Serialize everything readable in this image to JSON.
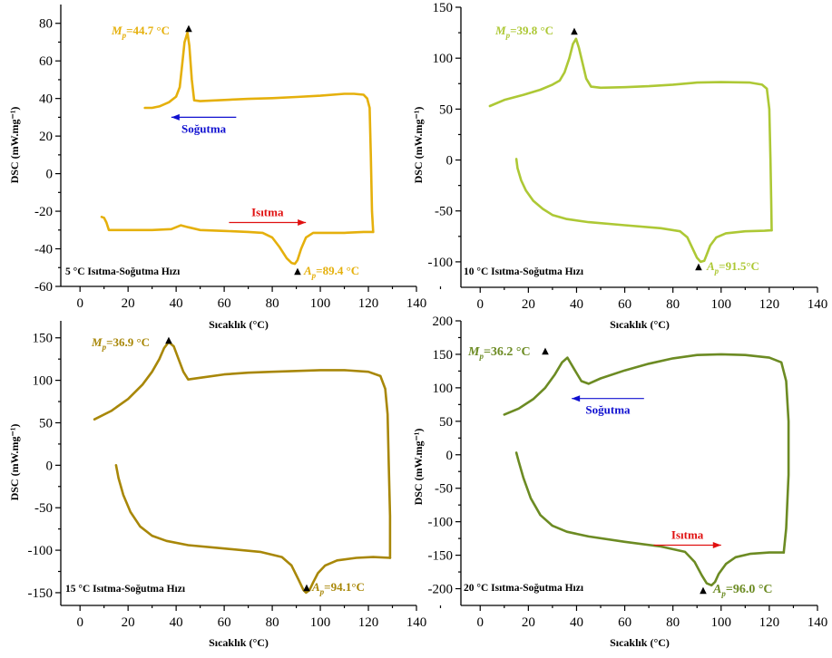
{
  "chart_data": [
    {
      "type": "line",
      "color": "#E5B00C",
      "xlabel": "Sıcaklık (°C)",
      "ylabel": "DSC (mW.mg⁻¹)",
      "xlim": [
        -8,
        140
      ],
      "ylim": [
        -60,
        90
      ],
      "xticks": [
        0,
        20,
        40,
        60,
        80,
        100,
        120,
        140
      ],
      "yticks": [
        -60,
        -40,
        -20,
        0,
        20,
        40,
        60,
        80
      ],
      "panel_label": "5 °C Isıtma-Soğutma Hızı",
      "peaks": {
        "mp": {
          "label": "M",
          "subscript": "p",
          "value": "=44.7 °C",
          "x": 44.7,
          "y": 77
        },
        "ap": {
          "label": "A",
          "subscript": "p",
          "value": "=89.4 °C",
          "x": 89.4,
          "y": -48
        }
      },
      "arrows": [
        {
          "label": "Soğutma",
          "direction": "left",
          "color": "#1010D0",
          "x_from": 65,
          "x_to": 38,
          "y": 30
        },
        {
          "label": "Isıtma",
          "direction": "right",
          "color": "#E01010",
          "x_from": 62,
          "x_to": 94,
          "y": -26
        }
      ],
      "series": [
        {
          "points": [
            [
              9,
              -23
            ],
            [
              10,
              -23.5
            ],
            [
              11,
              -26
            ],
            [
              12,
              -30
            ],
            [
              20,
              -30
            ],
            [
              30,
              -30
            ],
            [
              38,
              -29.5
            ],
            [
              42,
              -27.5
            ],
            [
              45,
              -28.5
            ],
            [
              50,
              -30
            ],
            [
              60,
              -30.5
            ],
            [
              70,
              -31
            ],
            [
              76,
              -31.5
            ],
            [
              80,
              -34
            ],
            [
              83,
              -39
            ],
            [
              86,
              -45
            ],
            [
              88,
              -47.5
            ],
            [
              89.4,
              -48
            ],
            [
              90.5,
              -46
            ],
            [
              92,
              -40
            ],
            [
              94,
              -34
            ],
            [
              97,
              -31.5
            ],
            [
              100,
              -31.5
            ],
            [
              110,
              -31.5
            ],
            [
              118,
              -31
            ],
            [
              122,
              -31
            ]
          ]
        },
        {
          "points": [
            [
              122,
              -31
            ],
            [
              121.5,
              -20
            ],
            [
              121,
              10
            ],
            [
              120.5,
              35
            ],
            [
              119.5,
              40
            ],
            [
              118,
              42
            ],
            [
              114,
              42.5
            ],
            [
              110,
              42.5
            ],
            [
              100,
              41.5
            ],
            [
              90,
              40.8
            ],
            [
              80,
              40.2
            ],
            [
              70,
              39.8
            ],
            [
              60,
              39.2
            ],
            [
              50,
              38.6
            ],
            [
              47.5,
              39
            ],
            [
              46.5,
              50
            ],
            [
              45.5,
              68
            ],
            [
              44.7,
              75
            ],
            [
              43.5,
              70
            ],
            [
              42.5,
              58
            ],
            [
              41.5,
              46
            ],
            [
              40,
              41
            ],
            [
              37,
              38
            ],
            [
              33,
              35.8
            ],
            [
              30,
              35
            ],
            [
              27,
              35
            ]
          ]
        }
      ]
    },
    {
      "type": "line",
      "color": "#ADC835",
      "xlabel": "Sıcaklık (°C)",
      "ylabel": "DSC (mW.mg⁻¹)",
      "xlim": [
        -8,
        140
      ],
      "ylim": [
        -125,
        150
      ],
      "xticks": [
        0,
        20,
        40,
        60,
        80,
        100,
        120,
        140
      ],
      "yticks": [
        -100,
        -50,
        0,
        50,
        100,
        150
      ],
      "panel_label": "10 °C Isıtma-Soğutma Hızı",
      "peaks": {
        "mp": {
          "label": "M",
          "subscript": "p",
          "value": "=39.8 °C",
          "x": 39.8,
          "y": 127
        },
        "ap": {
          "label": "A",
          "subscript": "p",
          "value": "=91.5°C",
          "x": 91.5,
          "y": -108
        }
      },
      "arrows": [],
      "series": [
        {
          "points": [
            [
              15,
              1
            ],
            [
              15.5,
              -8
            ],
            [
              17,
              -20
            ],
            [
              19,
              -30
            ],
            [
              22,
              -40
            ],
            [
              26,
              -48
            ],
            [
              30,
              -54
            ],
            [
              36,
              -58
            ],
            [
              45,
              -61
            ],
            [
              60,
              -64
            ],
            [
              75,
              -67
            ],
            [
              83,
              -70
            ],
            [
              86,
              -76
            ],
            [
              88,
              -86
            ],
            [
              90,
              -96
            ],
            [
              91.5,
              -100
            ],
            [
              93,
              -99
            ],
            [
              94,
              -93
            ],
            [
              95.5,
              -84
            ],
            [
              98,
              -76
            ],
            [
              102,
              -72
            ],
            [
              110,
              -70
            ],
            [
              118,
              -69.5
            ],
            [
              121,
              -69
            ]
          ]
        },
        {
          "points": [
            [
              121,
              -69
            ],
            [
              120.8,
              -40
            ],
            [
              120.5,
              0
            ],
            [
              120,
              50
            ],
            [
              119,
              70
            ],
            [
              117,
              74
            ],
            [
              112,
              76
            ],
            [
              100,
              76.5
            ],
            [
              90,
              76
            ],
            [
              80,
              74
            ],
            [
              70,
              72.5
            ],
            [
              60,
              71.5
            ],
            [
              50,
              71
            ],
            [
              46,
              72
            ],
            [
              44,
              80
            ],
            [
              42.5,
              95
            ],
            [
              41,
              110
            ],
            [
              39.8,
              119
            ],
            [
              38.5,
              114
            ],
            [
              37,
              100
            ],
            [
              35,
              86
            ],
            [
              33,
              78
            ],
            [
              30,
              74
            ],
            [
              25,
              69
            ],
            [
              18,
              64
            ],
            [
              10,
              59
            ],
            [
              4,
              53
            ]
          ]
        }
      ]
    },
    {
      "type": "line",
      "color": "#A88708",
      "xlabel": "Sıcaklık (°C)",
      "ylabel": "DSC (mW.mg⁻¹)",
      "xlim": [
        -8,
        140
      ],
      "ylim": [
        -165,
        170
      ],
      "xticks": [
        0,
        20,
        40,
        60,
        80,
        100,
        120,
        140
      ],
      "yticks": [
        -150,
        -100,
        -50,
        0,
        50,
        100,
        150
      ],
      "panel_label": "15 °C Isıtma-Soğutma Hızı",
      "peaks": {
        "mp": {
          "label": "M",
          "subscript": "p",
          "value": "=36.9 °C",
          "x": 36.9,
          "y": 150
        },
        "ap": {
          "label": "A",
          "subscript": "p",
          "value": "=94.1°C",
          "x": 94.1,
          "y": -160
        }
      },
      "arrows": [],
      "series": [
        {
          "points": [
            [
              15,
              0
            ],
            [
              16,
              -15
            ],
            [
              18,
              -35
            ],
            [
              21,
              -55
            ],
            [
              25,
              -72
            ],
            [
              30,
              -83
            ],
            [
              36,
              -89
            ],
            [
              45,
              -94
            ],
            [
              60,
              -98
            ],
            [
              75,
              -102
            ],
            [
              84,
              -108
            ],
            [
              88,
              -118
            ],
            [
              91,
              -135
            ],
            [
              93,
              -147
            ],
            [
              94.1,
              -150
            ],
            [
              95.5,
              -147
            ],
            [
              97,
              -138
            ],
            [
              99,
              -127
            ],
            [
              102,
              -118
            ],
            [
              107,
              -112
            ],
            [
              115,
              -109
            ],
            [
              122,
              -108
            ],
            [
              129,
              -109
            ]
          ]
        },
        {
          "points": [
            [
              129,
              -109
            ],
            [
              129,
              -60
            ],
            [
              128.5,
              0
            ],
            [
              128,
              60
            ],
            [
              127,
              90
            ],
            [
              125,
              105
            ],
            [
              120,
              110
            ],
            [
              110,
              112
            ],
            [
              100,
              112
            ],
            [
              90,
              111
            ],
            [
              80,
              110
            ],
            [
              70,
              109
            ],
            [
              60,
              107
            ],
            [
              50,
              103
            ],
            [
              45,
              101
            ],
            [
              43,
              110
            ],
            [
              41,
              125
            ],
            [
              39,
              140
            ],
            [
              36.9,
              145
            ],
            [
              35,
              138
            ],
            [
              33,
              125
            ],
            [
              30,
              110
            ],
            [
              26,
              95
            ],
            [
              20,
              78
            ],
            [
              13,
              64
            ],
            [
              6,
              54
            ]
          ]
        }
      ]
    },
    {
      "type": "line",
      "color": "#6C8B23",
      "xlabel": "Sıcaklık (°C)",
      "ylabel": "DSC (mW.mg⁻¹)",
      "xlim": [
        -8,
        140
      ],
      "ylim": [
        -225,
        200
      ],
      "xticks": [
        0,
        20,
        40,
        60,
        80,
        100,
        120,
        140
      ],
      "yticks": [
        -200,
        -150,
        -100,
        -50,
        0,
        50,
        100,
        150,
        200
      ],
      "panel_label": "20 °C Isıtma-Soğutma Hızı",
      "peaks": {
        "mp": {
          "label": "M",
          "subscript": "p",
          "value": "=36.2 °C",
          "x": 36.2,
          "y": 154
        },
        "ap": {
          "label": "A",
          "subscript": "p",
          "value": "=96.0 °C",
          "x": 96.0,
          "y": -212
        }
      },
      "arrows": [
        {
          "label": "Soğutma",
          "direction": "left",
          "color": "#1010D0",
          "x_from": 68,
          "x_to": 38,
          "y": 84
        },
        {
          "label": "Isıtma",
          "direction": "right",
          "color": "#E01010",
          "x_from": 72,
          "x_to": 100,
          "y": -135
        }
      ],
      "series": [
        {
          "points": [
            [
              15,
              3
            ],
            [
              16,
              -10
            ],
            [
              18,
              -35
            ],
            [
              21,
              -65
            ],
            [
              25,
              -90
            ],
            [
              30,
              -106
            ],
            [
              36,
              -115
            ],
            [
              45,
              -122
            ],
            [
              60,
              -130
            ],
            [
              75,
              -137
            ],
            [
              85,
              -145
            ],
            [
              89,
              -160
            ],
            [
              92,
              -180
            ],
            [
              94,
              -192
            ],
            [
              96,
              -195
            ],
            [
              97.5,
              -190
            ],
            [
              99,
              -178
            ],
            [
              102,
              -163
            ],
            [
              106,
              -153
            ],
            [
              112,
              -148
            ],
            [
              120,
              -146
            ],
            [
              126,
              -146
            ]
          ]
        },
        {
          "points": [
            [
              126,
              -146
            ],
            [
              127,
              -110
            ],
            [
              128,
              -30
            ],
            [
              128,
              50
            ],
            [
              127,
              110
            ],
            [
              125,
              138
            ],
            [
              120,
              145
            ],
            [
              110,
              149
            ],
            [
              100,
              150
            ],
            [
              90,
              149
            ],
            [
              80,
              144
            ],
            [
              70,
              136
            ],
            [
              60,
              126
            ],
            [
              50,
              114
            ],
            [
              45,
              106
            ],
            [
              42,
              110
            ],
            [
              39,
              128
            ],
            [
              36.2,
              145
            ],
            [
              34,
              138
            ],
            [
              31,
              120
            ],
            [
              27,
              100
            ],
            [
              22,
              83
            ],
            [
              16,
              69
            ],
            [
              10,
              60
            ]
          ]
        }
      ]
    }
  ]
}
